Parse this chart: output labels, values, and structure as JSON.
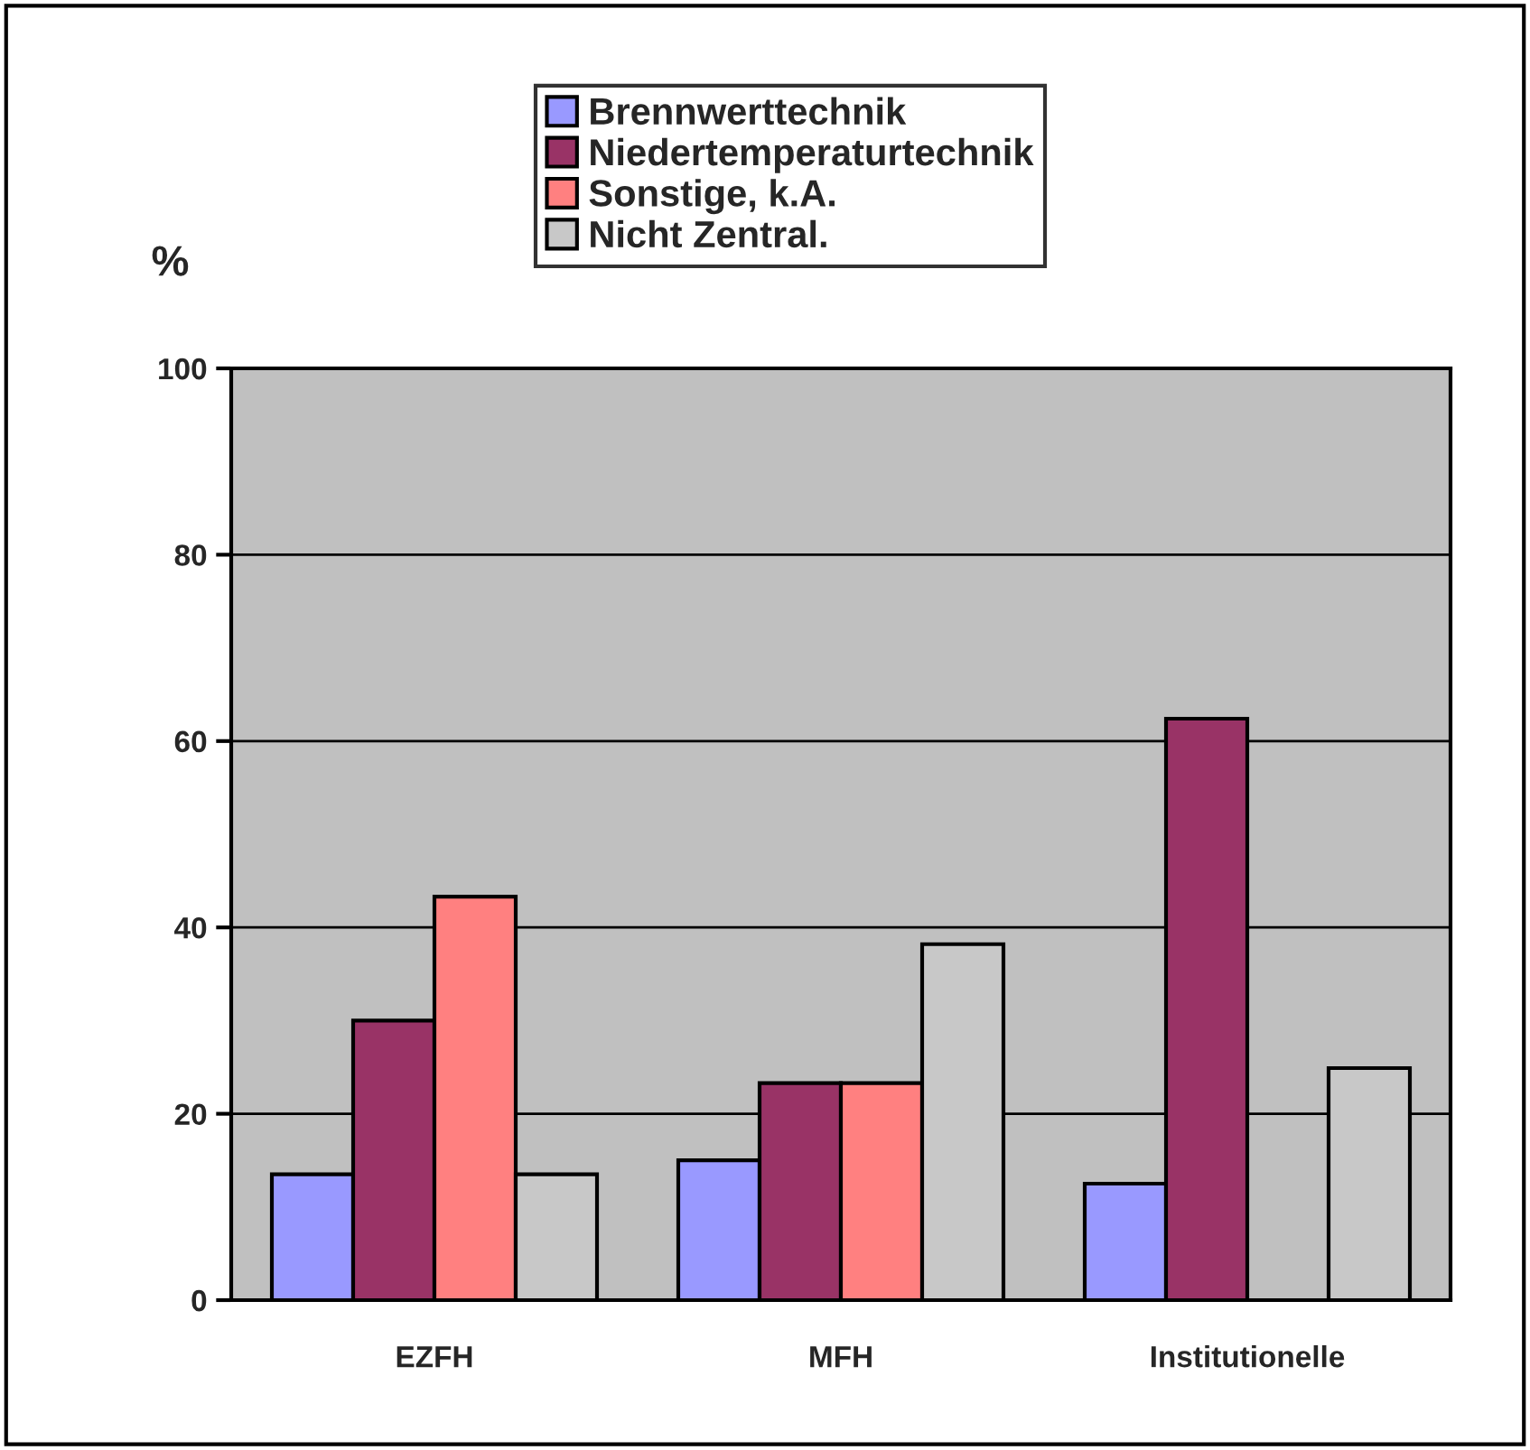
{
  "chart_data": {
    "type": "bar",
    "ylabel": "%",
    "categories": [
      "EZFH",
      "MFH",
      "Institutionelle"
    ],
    "series": [
      {
        "name": "Brennwerttechnik",
        "color": "#9999ff",
        "values": [
          13.5,
          15,
          12.5
        ]
      },
      {
        "name": "Niedertemperaturtechnik",
        "color": "#993366",
        "values": [
          30,
          23.3,
          62.4
        ]
      },
      {
        "name": "Sonstige, k.A.",
        "color": "#ff8080",
        "values": [
          43.3,
          23.3,
          null
        ]
      },
      {
        "name": "Nicht Zentral.",
        "color": "#c8c8c8",
        "values": [
          13.5,
          38.2,
          24.9
        ]
      }
    ],
    "ylim": [
      0,
      100
    ],
    "yticks": [
      0,
      20,
      40,
      60,
      80,
      100
    ],
    "grid": "y",
    "legend": "top"
  }
}
